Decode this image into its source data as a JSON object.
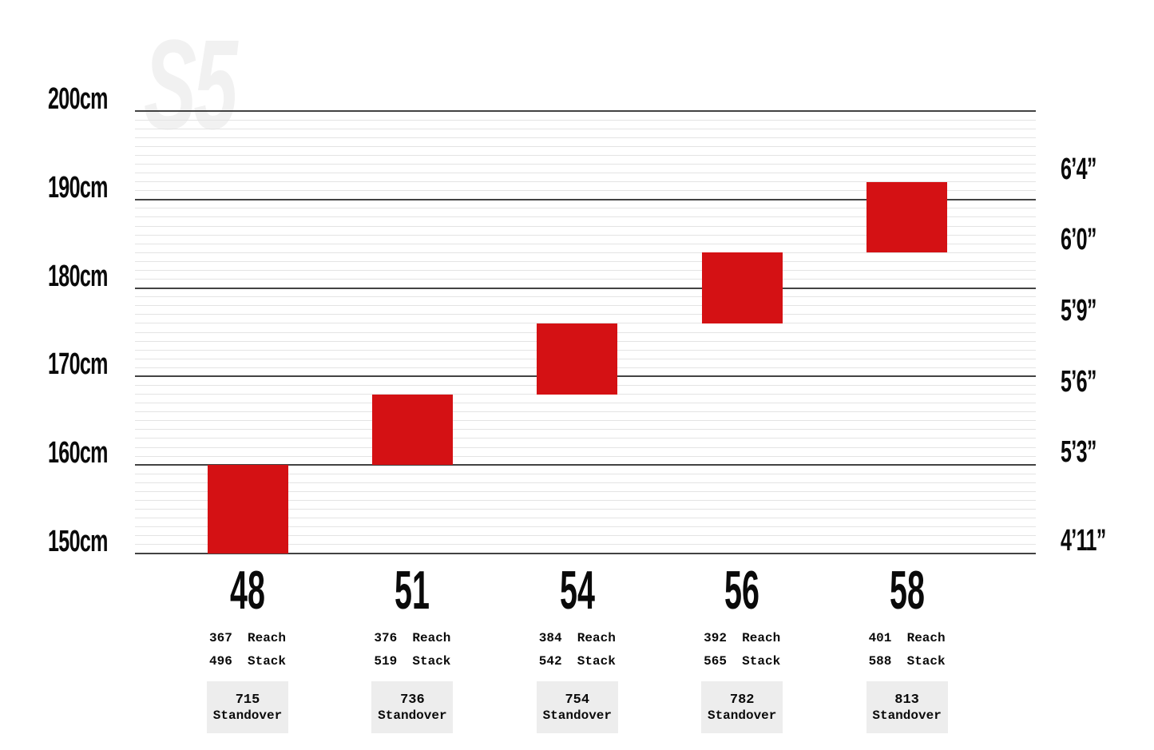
{
  "chart_data": {
    "type": "bar",
    "description": "Bike frame size guide: rider height range per frame size",
    "watermark": "S5",
    "y_axis": {
      "unit": "cm",
      "min": 150,
      "max": 200,
      "major_ticks": [
        200,
        190,
        180,
        170,
        160,
        150
      ],
      "major_tick_labels": [
        "200cm",
        "190cm",
        "180cm",
        "170cm",
        "160cm",
        "150cm"
      ],
      "minor_tick_step_cm": 1,
      "grid": true
    },
    "imperial_axis": {
      "ticks": [
        {
          "label": "6’4”",
          "cm": 192
        },
        {
          "label": "6’0”",
          "cm": 184
        },
        {
          "label": "5’9”",
          "cm": 176
        },
        {
          "label": "5’6”",
          "cm": 168
        },
        {
          "label": "5’3”",
          "cm": 160
        },
        {
          "label": "4’11”",
          "cm": 150
        }
      ]
    },
    "spec_labels": {
      "reach": "Reach",
      "stack": "Stack",
      "standover": "Standover"
    },
    "sizes": [
      {
        "size": "48",
        "height_range_cm": [
          150,
          160
        ],
        "reach": "367",
        "stack": "496",
        "standover": "715"
      },
      {
        "size": "51",
        "height_range_cm": [
          160,
          168
        ],
        "reach": "376",
        "stack": "519",
        "standover": "736"
      },
      {
        "size": "54",
        "height_range_cm": [
          168,
          176
        ],
        "reach": "384",
        "stack": "542",
        "standover": "754"
      },
      {
        "size": "56",
        "height_range_cm": [
          176,
          184
        ],
        "reach": "392",
        "stack": "565",
        "standover": "782"
      },
      {
        "size": "58",
        "height_range_cm": [
          184,
          192
        ],
        "reach": "401",
        "stack": "588",
        "standover": "813"
      }
    ],
    "colors": {
      "bar": "#d41114",
      "grid_major": "#424242",
      "grid_minor": "#e4e4e4",
      "box_bg": "#ededed",
      "text": "#0a0a0a",
      "watermark": "#f1f1f1"
    }
  }
}
